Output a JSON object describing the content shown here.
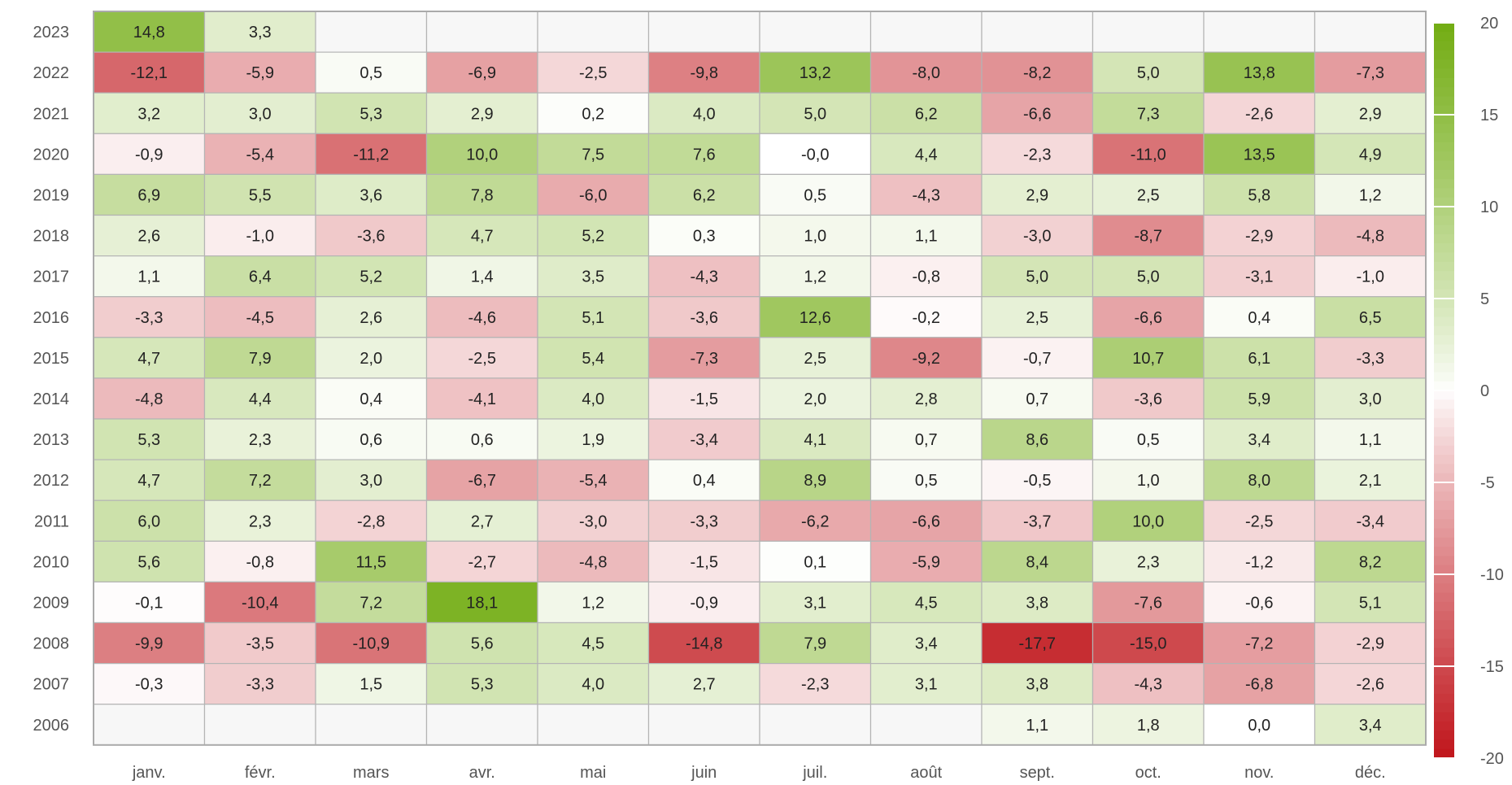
{
  "chart_data": {
    "type": "heatmap",
    "title": "",
    "xlabel": "",
    "ylabel": "",
    "x_categories": [
      "janv.",
      "févr.",
      "mars",
      "avr.",
      "mai",
      "juin",
      "juil.",
      "août",
      "sept.",
      "oct.",
      "nov.",
      "déc."
    ],
    "y_categories": [
      "2023",
      "2022",
      "2021",
      "2020",
      "2019",
      "2018",
      "2017",
      "2016",
      "2015",
      "2014",
      "2013",
      "2012",
      "2011",
      "2010",
      "2009",
      "2008",
      "2007",
      "2006"
    ],
    "values": [
      [
        14.8,
        3.3,
        null,
        null,
        null,
        null,
        null,
        null,
        null,
        null,
        null,
        null
      ],
      [
        -12.1,
        -5.9,
        0.5,
        -6.9,
        -2.5,
        -9.8,
        13.2,
        -8.0,
        -8.2,
        5.0,
        13.8,
        -7.3
      ],
      [
        3.2,
        3.0,
        5.3,
        2.9,
        0.2,
        4.0,
        5.0,
        6.2,
        -6.6,
        7.3,
        -2.6,
        2.9
      ],
      [
        -0.9,
        -5.4,
        -11.2,
        10.0,
        7.5,
        7.6,
        -0.0,
        4.4,
        -2.3,
        -11.0,
        13.5,
        4.9
      ],
      [
        6.9,
        5.5,
        3.6,
        7.8,
        -6.0,
        6.2,
        0.5,
        -4.3,
        2.9,
        2.5,
        5.8,
        1.2
      ],
      [
        2.6,
        -1.0,
        -3.6,
        4.7,
        5.2,
        0.3,
        1.0,
        1.1,
        -3.0,
        -8.7,
        -2.9,
        -4.8
      ],
      [
        1.1,
        6.4,
        5.2,
        1.4,
        3.5,
        -4.3,
        1.2,
        -0.8,
        5.0,
        5.0,
        -3.1,
        -1.0
      ],
      [
        -3.3,
        -4.5,
        2.6,
        -4.6,
        5.1,
        -3.6,
        12.6,
        -0.2,
        2.5,
        -6.6,
        0.4,
        6.5
      ],
      [
        4.7,
        7.9,
        2.0,
        -2.5,
        5.4,
        -7.3,
        2.5,
        -9.2,
        -0.7,
        10.7,
        6.1,
        -3.3
      ],
      [
        -4.8,
        4.4,
        0.4,
        -4.1,
        4.0,
        -1.5,
        2.0,
        2.8,
        0.7,
        -3.6,
        5.9,
        3.0
      ],
      [
        5.3,
        2.3,
        0.6,
        0.6,
        1.9,
        -3.4,
        4.1,
        0.7,
        8.6,
        0.5,
        3.4,
        1.1
      ],
      [
        4.7,
        7.2,
        3.0,
        -6.7,
        -5.4,
        0.4,
        8.9,
        0.5,
        -0.5,
        1.0,
        8.0,
        2.1
      ],
      [
        6.0,
        2.3,
        -2.8,
        2.7,
        -3.0,
        -3.3,
        -6.2,
        -6.6,
        -3.7,
        10.0,
        -2.5,
        -3.4
      ],
      [
        5.6,
        -0.8,
        11.5,
        -2.7,
        -4.8,
        -1.5,
        0.1,
        -5.9,
        8.4,
        2.3,
        -1.2,
        8.2
      ],
      [
        -0.1,
        -10.4,
        7.2,
        18.1,
        1.2,
        -0.9,
        3.1,
        4.5,
        3.8,
        -7.6,
        -0.6,
        5.1
      ],
      [
        -9.9,
        -3.5,
        -10.9,
        5.6,
        4.5,
        -14.8,
        7.9,
        3.4,
        -17.7,
        -15.0,
        -7.2,
        -2.9
      ],
      [
        -0.3,
        -3.3,
        1.5,
        5.3,
        4.0,
        2.7,
        -2.3,
        3.1,
        3.8,
        -4.3,
        -6.8,
        -2.6
      ],
      [
        null,
        null,
        null,
        null,
        null,
        null,
        null,
        null,
        1.1,
        1.8,
        0.0,
        3.4
      ]
    ],
    "value_labels": [
      [
        "14,8",
        "3,3",
        "",
        "",
        "",
        "",
        "",
        "",
        "",
        "",
        "",
        ""
      ],
      [
        "-12,1",
        "-5,9",
        "0,5",
        "-6,9",
        "-2,5",
        "-9,8",
        "13,2",
        "-8,0",
        "-8,2",
        "5,0",
        "13,8",
        "-7,3"
      ],
      [
        "3,2",
        "3,0",
        "5,3",
        "2,9",
        "0,2",
        "4,0",
        "5,0",
        "6,2",
        "-6,6",
        "7,3",
        "-2,6",
        "2,9"
      ],
      [
        "-0,9",
        "-5,4",
        "-11,2",
        "10,0",
        "7,5",
        "7,6",
        "-0,0",
        "4,4",
        "-2,3",
        "-11,0",
        "13,5",
        "4,9"
      ],
      [
        "6,9",
        "5,5",
        "3,6",
        "7,8",
        "-6,0",
        "6,2",
        "0,5",
        "-4,3",
        "2,9",
        "2,5",
        "5,8",
        "1,2"
      ],
      [
        "2,6",
        "-1,0",
        "-3,6",
        "4,7",
        "5,2",
        "0,3",
        "1,0",
        "1,1",
        "-3,0",
        "-8,7",
        "-2,9",
        "-4,8"
      ],
      [
        "1,1",
        "6,4",
        "5,2",
        "1,4",
        "3,5",
        "-4,3",
        "1,2",
        "-0,8",
        "5,0",
        "5,0",
        "-3,1",
        "-1,0"
      ],
      [
        "-3,3",
        "-4,5",
        "2,6",
        "-4,6",
        "5,1",
        "-3,6",
        "12,6",
        "-0,2",
        "2,5",
        "-6,6",
        "0,4",
        "6,5"
      ],
      [
        "4,7",
        "7,9",
        "2,0",
        "-2,5",
        "5,4",
        "-7,3",
        "2,5",
        "-9,2",
        "-0,7",
        "10,7",
        "6,1",
        "-3,3"
      ],
      [
        "-4,8",
        "4,4",
        "0,4",
        "-4,1",
        "4,0",
        "-1,5",
        "2,0",
        "2,8",
        "0,7",
        "-3,6",
        "5,9",
        "3,0"
      ],
      [
        "5,3",
        "2,3",
        "0,6",
        "0,6",
        "1,9",
        "-3,4",
        "4,1",
        "0,7",
        "8,6",
        "0,5",
        "3,4",
        "1,1"
      ],
      [
        "4,7",
        "7,2",
        "3,0",
        "-6,7",
        "-5,4",
        "0,4",
        "8,9",
        "0,5",
        "-0,5",
        "1,0",
        "8,0",
        "2,1"
      ],
      [
        "6,0",
        "2,3",
        "-2,8",
        "2,7",
        "-3,0",
        "-3,3",
        "-6,2",
        "-6,6",
        "-3,7",
        "10,0",
        "-2,5",
        "-3,4"
      ],
      [
        "5,6",
        "-0,8",
        "11,5",
        "-2,7",
        "-4,8",
        "-1,5",
        "0,1",
        "-5,9",
        "8,4",
        "2,3",
        "-1,2",
        "8,2"
      ],
      [
        "-0,1",
        "-10,4",
        "7,2",
        "18,1",
        "1,2",
        "-0,9",
        "3,1",
        "4,5",
        "3,8",
        "-7,6",
        "-0,6",
        "5,1"
      ],
      [
        "-9,9",
        "-3,5",
        "-10,9",
        "5,6",
        "4,5",
        "-14,8",
        "7,9",
        "3,4",
        "-17,7",
        "-15,0",
        "-7,2",
        "-2,9"
      ],
      [
        "-0,3",
        "-3,3",
        "1,5",
        "5,3",
        "4,0",
        "2,7",
        "-2,3",
        "3,1",
        "3,8",
        "-4,3",
        "-6,8",
        "-2,6"
      ],
      [
        "",
        "",
        "",
        "",
        "",
        "",
        "",
        "",
        "1,1",
        "1,8",
        "0,0",
        "3,4"
      ]
    ],
    "color_scale": {
      "min": -20,
      "max": 20,
      "ticks": [
        20,
        15,
        10,
        5,
        0,
        -5,
        -10,
        -15,
        -20
      ],
      "color_min": "#c0161c",
      "color_mid": "#ffffff",
      "color_max": "#72ac12",
      "empty_color": "#f7f7f7",
      "placement": "right"
    },
    "grid": true
  }
}
